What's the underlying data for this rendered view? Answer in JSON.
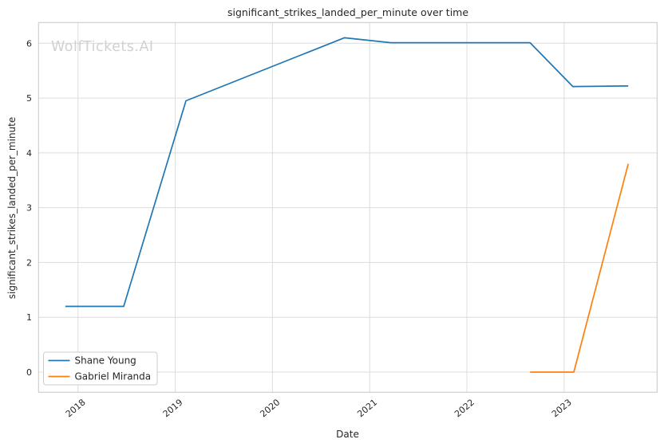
{
  "watermark": "WolfTickets.AI",
  "chart_data": {
    "type": "line",
    "title": "significant_strikes_landed_per_minute over time",
    "xlabel": "Date",
    "ylabel": "significant_strikes_landed_per_minute",
    "x_ticks": [
      2018,
      2019,
      2020,
      2021,
      2022,
      2023
    ],
    "y_ticks": [
      0,
      1,
      2,
      3,
      4,
      5,
      6
    ],
    "xlim": [
      2017.594,
      2023.957
    ],
    "ylim": [
      -0.368,
      6.378
    ],
    "grid": true,
    "legend_position": "lower left",
    "series": [
      {
        "name": "Shane Young",
        "color": "#1f77b4",
        "x": [
          2017.87,
          2018.47,
          2019.11,
          2020.74,
          2021.22,
          2022.65,
          2023.09,
          2023.66
        ],
        "y": [
          1.2,
          1.2,
          4.95,
          6.1,
          6.01,
          6.01,
          5.21,
          5.22
        ]
      },
      {
        "name": "Gabriel Miranda",
        "color": "#ff7f0e",
        "x": [
          2022.65,
          2023.1,
          2023.66
        ],
        "y": [
          0.0,
          0.0,
          3.8
        ]
      }
    ]
  }
}
